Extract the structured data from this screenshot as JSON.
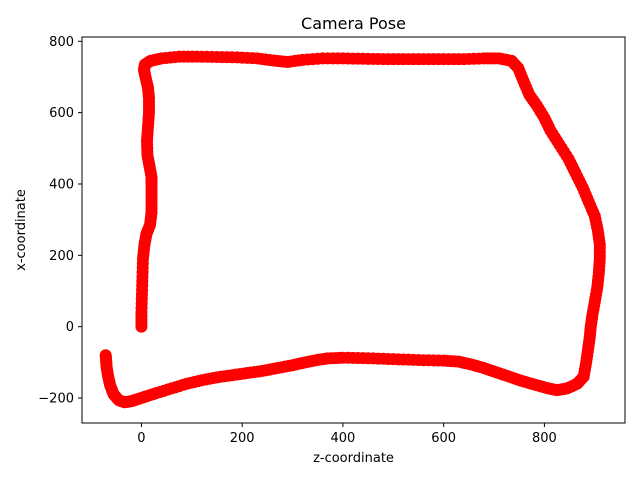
{
  "chart_data": {
    "type": "scatter",
    "title": "Camera Pose",
    "xlabel": "z-coordinate",
    "ylabel": "x-coordinate",
    "xlim": [
      -118,
      960
    ],
    "ylim": [
      -270,
      812
    ],
    "xticks": [
      0,
      200,
      400,
      600,
      800
    ],
    "yticks": [
      -200,
      0,
      200,
      400,
      600,
      800
    ],
    "xtick_labels": [
      "0",
      "200",
      "400",
      "600",
      "800"
    ],
    "ytick_labels": [
      "−200",
      "0",
      "200",
      "400",
      "600",
      "800"
    ],
    "grid": false,
    "series": [
      {
        "color": "#ff0000",
        "marker": "circle",
        "points": [
          [
            0,
            0
          ],
          [
            0,
            40
          ],
          [
            1,
            90
          ],
          [
            2,
            140
          ],
          [
            3,
            190
          ],
          [
            6,
            230
          ],
          [
            10,
            260
          ],
          [
            17,
            285
          ],
          [
            20,
            320
          ],
          [
            20,
            360
          ],
          [
            20,
            400
          ],
          [
            20,
            420
          ],
          [
            16,
            450
          ],
          [
            12,
            480
          ],
          [
            11,
            520
          ],
          [
            13,
            560
          ],
          [
            15,
            600
          ],
          [
            15,
            640
          ],
          [
            13,
            670
          ],
          [
            8,
            700
          ],
          [
            5,
            720
          ],
          [
            7,
            735
          ],
          [
            18,
            745
          ],
          [
            40,
            752
          ],
          [
            75,
            757
          ],
          [
            110,
            757
          ],
          [
            150,
            756
          ],
          [
            190,
            755
          ],
          [
            230,
            752
          ],
          [
            262,
            746
          ],
          [
            290,
            742
          ],
          [
            320,
            748
          ],
          [
            360,
            752
          ],
          [
            400,
            752
          ],
          [
            440,
            751
          ],
          [
            480,
            750
          ],
          [
            520,
            750
          ],
          [
            560,
            750
          ],
          [
            600,
            750
          ],
          [
            640,
            750
          ],
          [
            680,
            752
          ],
          [
            710,
            752
          ],
          [
            735,
            745
          ],
          [
            748,
            725
          ],
          [
            758,
            690
          ],
          [
            770,
            650
          ],
          [
            785,
            620
          ],
          [
            800,
            585
          ],
          [
            812,
            550
          ],
          [
            830,
            510
          ],
          [
            848,
            470
          ],
          [
            862,
            430
          ],
          [
            876,
            390
          ],
          [
            888,
            350
          ],
          [
            900,
            310
          ],
          [
            906,
            270
          ],
          [
            910,
            230
          ],
          [
            910,
            190
          ],
          [
            908,
            150
          ],
          [
            905,
            110
          ],
          [
            900,
            70
          ],
          [
            895,
            30
          ],
          [
            892,
            0
          ],
          [
            890,
            -30
          ],
          [
            887,
            -60
          ],
          [
            883,
            -100
          ],
          [
            878,
            -140
          ],
          [
            865,
            -160
          ],
          [
            845,
            -173
          ],
          [
            825,
            -178
          ],
          [
            805,
            -172
          ],
          [
            780,
            -162
          ],
          [
            755,
            -152
          ],
          [
            730,
            -140
          ],
          [
            705,
            -128
          ],
          [
            680,
            -116
          ],
          [
            655,
            -106
          ],
          [
            630,
            -98
          ],
          [
            600,
            -95
          ],
          [
            560,
            -94
          ],
          [
            520,
            -92
          ],
          [
            480,
            -90
          ],
          [
            440,
            -88
          ],
          [
            400,
            -87
          ],
          [
            370,
            -89
          ],
          [
            350,
            -93
          ],
          [
            325,
            -100
          ],
          [
            300,
            -108
          ],
          [
            270,
            -116
          ],
          [
            240,
            -124
          ],
          [
            210,
            -130
          ],
          [
            180,
            -136
          ],
          [
            150,
            -142
          ],
          [
            120,
            -150
          ],
          [
            90,
            -160
          ],
          [
            60,
            -173
          ],
          [
            30,
            -186
          ],
          [
            10,
            -195
          ],
          [
            -5,
            -202
          ],
          [
            -18,
            -208
          ],
          [
            -33,
            -212
          ],
          [
            -45,
            -206
          ],
          [
            -55,
            -190
          ],
          [
            -62,
            -165
          ],
          [
            -66,
            -140
          ],
          [
            -69,
            -115
          ],
          [
            -70,
            -95
          ],
          [
            -71,
            -80
          ]
        ]
      }
    ]
  }
}
